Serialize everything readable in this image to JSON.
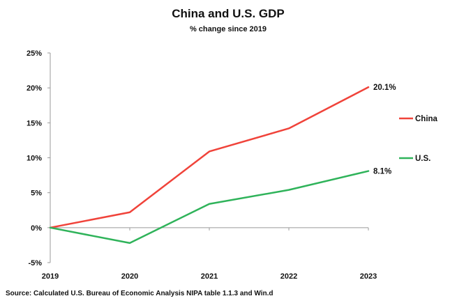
{
  "chart_data": {
    "type": "line",
    "title": "China and U.S. GDP",
    "subtitle": "% change since 2019",
    "x": [
      "2019",
      "2020",
      "2021",
      "2022",
      "2023"
    ],
    "ylim": [
      -5,
      25
    ],
    "yticks": [
      -5,
      0,
      5,
      10,
      15,
      20,
      25
    ],
    "ytick_labels": [
      "-5%",
      "0%",
      "5%",
      "10%",
      "15%",
      "20%",
      "25%"
    ],
    "series": [
      {
        "name": "China",
        "color": "#f0433a",
        "values": [
          0,
          2.2,
          10.9,
          14.2,
          20.1
        ],
        "end_label": "20.1%"
      },
      {
        "name": "U.S.",
        "color": "#2fb35a",
        "values": [
          0,
          -2.2,
          3.4,
          5.4,
          8.1
        ],
        "end_label": "8.1%"
      }
    ],
    "legend": "right",
    "source": "Source:  Calculated U.S. Bureau of Economic Analysis NIPA table 1.1.3 and Win.d"
  }
}
